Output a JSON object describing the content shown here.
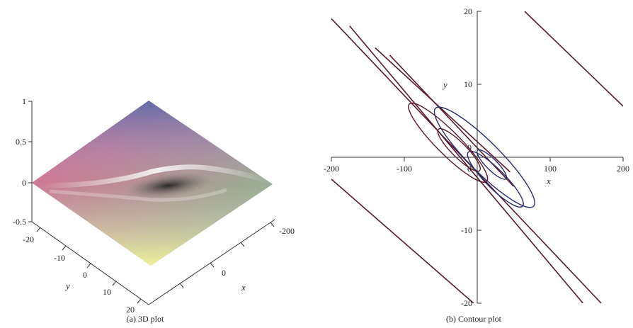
{
  "figure": {
    "caption_a": "(a) 3D plot",
    "caption_b": "(b) Contour plot"
  },
  "chart_data": [
    {
      "type": "surface",
      "panel": "a",
      "xlabel": "x",
      "ylabel": "y",
      "z_ticks": [
        "1",
        "0.5",
        "0",
        "-0.5"
      ],
      "y_ticks": [
        "-20",
        "-10",
        "0",
        "10",
        "20"
      ],
      "x_ticks": [
        "-200",
        "0"
      ],
      "zlim": [
        -0.5,
        1
      ],
      "ylim": [
        -20,
        20
      ],
      "xlim": [
        -200,
        200
      ],
      "colors": [
        "#5b6aa8",
        "#f0508c",
        "#6fcf8a",
        "#f4f49a"
      ]
    },
    {
      "type": "line",
      "panel": "b",
      "xlabel": "x",
      "ylabel": "y",
      "x_ticks": [
        "-200",
        "-100",
        "0",
        "100",
        "200"
      ],
      "y_ticks": [
        "20",
        "10",
        "-10",
        "-20"
      ],
      "y_origin_label": "0",
      "xlim": [
        -200,
        200
      ],
      "ylim": [
        -20,
        20
      ],
      "line_colors": [
        "#5a1a2e",
        "#2a2f6e"
      ],
      "series": [
        {
          "kind": "line",
          "color": "#5a1a2e",
          "points": [
            [
              -200,
              19
            ],
            [
              170,
              -20
            ]
          ]
        },
        {
          "kind": "line",
          "color": "#5a1a2e",
          "points": [
            [
              -175,
              18
            ],
            [
              145,
              -20
            ]
          ]
        },
        {
          "kind": "line",
          "color": "#5a1a2e",
          "points": [
            [
              -200,
              -3
            ],
            [
              -5,
              -20
            ]
          ]
        },
        {
          "kind": "line",
          "color": "#5a1a2e",
          "points": [
            [
              65,
              20
            ],
            [
              200,
              7
            ]
          ]
        },
        {
          "kind": "line",
          "color": "#5a1a2e",
          "points": [
            [
              -140,
              15
            ],
            [
              45,
              -2
            ]
          ]
        },
        {
          "kind": "line",
          "color": "#5a1a2e",
          "points": [
            [
              -120,
              14
            ],
            [
              50,
              -4
            ]
          ]
        },
        {
          "kind": "ellipse",
          "color": "#2a2f6e",
          "center": [
            10,
            0
          ],
          "semi_major": 190,
          "semi_minor": 42,
          "angle_deg": -45
        },
        {
          "kind": "ellipse",
          "color": "#2a2f6e",
          "center": [
            25,
            -3
          ],
          "semi_major": 105,
          "semi_minor": 26,
          "angle_deg": -45
        },
        {
          "kind": "ellipse",
          "color": "#2a2f6e",
          "center": [
            20,
            -1
          ],
          "semi_major": 55,
          "semi_minor": 15,
          "angle_deg": -45
        },
        {
          "kind": "ellipse",
          "color": "#5a1a2e",
          "center": [
            -40,
            2
          ],
          "semi_major": 150,
          "semi_minor": 32,
          "angle_deg": -45
        },
        {
          "kind": "ellipse",
          "color": "#5a1a2e",
          "center": [
            -25,
            1
          ],
          "semi_major": 80,
          "semi_minor": 20,
          "angle_deg": -45
        }
      ]
    }
  ]
}
